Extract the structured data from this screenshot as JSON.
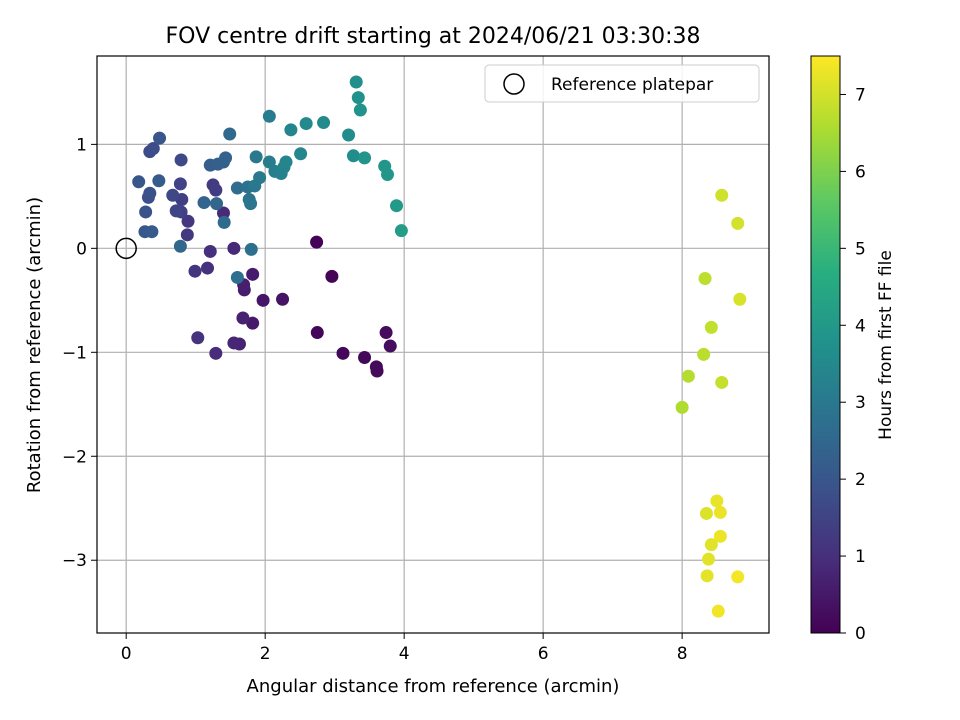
{
  "chart_data": {
    "type": "scatter",
    "title": "FOV centre drift starting at 2024/06/21 03:30:38",
    "xlabel": "Angular distance from reference (arcmin)",
    "ylabel": "Rotation from reference (arcmin)",
    "xlim": [
      -0.42,
      9.25
    ],
    "ylim": [
      -3.7,
      1.85
    ],
    "xticks": [
      0,
      2,
      4,
      6,
      8
    ],
    "yticks": [
      -3,
      -2,
      -1,
      0,
      1
    ],
    "xtick_labels": [
      "0",
      "2",
      "4",
      "6",
      "8"
    ],
    "ytick_labels": [
      "−3",
      "−2",
      "−1",
      "0",
      "1"
    ],
    "grid": true,
    "legend": {
      "position": "top-right",
      "label": "Reference platepar"
    },
    "reference_point": {
      "x": 0,
      "y": 0
    },
    "colorbar": {
      "label": "Hours from first FF file",
      "colormap": "viridis",
      "range": [
        0,
        7.5
      ],
      "ticks": [
        0,
        1,
        2,
        3,
        4,
        5,
        6,
        7
      ],
      "tick_labels": [
        "0",
        "1",
        "2",
        "3",
        "4",
        "5",
        "6",
        "7"
      ]
    },
    "points": [
      {
        "x": 2.74,
        "y": 0.06,
        "c": 0.05
      },
      {
        "x": 2.96,
        "y": -0.27,
        "c": 0.08
      },
      {
        "x": 2.75,
        "y": -0.81,
        "c": 0.1
      },
      {
        "x": 3.12,
        "y": -1.01,
        "c": 0.12
      },
      {
        "x": 3.43,
        "y": -1.05,
        "c": 0.15
      },
      {
        "x": 3.6,
        "y": -1.14,
        "c": 0.18
      },
      {
        "x": 3.61,
        "y": -1.18,
        "c": 0.2
      },
      {
        "x": 3.74,
        "y": -0.81,
        "c": 0.22
      },
      {
        "x": 3.8,
        "y": -0.94,
        "c": 0.25
      },
      {
        "x": 2.25,
        "y": -0.49,
        "c": 0.4
      },
      {
        "x": 1.97,
        "y": -0.5,
        "c": 0.45
      },
      {
        "x": 1.82,
        "y": -0.72,
        "c": 0.5
      },
      {
        "x": 1.82,
        "y": -0.25,
        "c": 0.55
      },
      {
        "x": 1.7,
        "y": -0.4,
        "c": 0.6
      },
      {
        "x": 1.69,
        "y": -0.35,
        "c": 0.65
      },
      {
        "x": 1.68,
        "y": -0.67,
        "c": 0.7
      },
      {
        "x": 1.63,
        "y": -0.92,
        "c": 0.75
      },
      {
        "x": 1.55,
        "y": -0.91,
        "c": 0.8
      },
      {
        "x": 1.55,
        "y": 0.0,
        "c": 0.85
      },
      {
        "x": 1.4,
        "y": 0.34,
        "c": 0.9
      },
      {
        "x": 1.29,
        "y": -1.01,
        "c": 0.95
      },
      {
        "x": 1.21,
        "y": -0.03,
        "c": 1.0
      },
      {
        "x": 1.17,
        "y": -0.19,
        "c": 1.05
      },
      {
        "x": 1.03,
        "y": -0.86,
        "c": 1.1
      },
      {
        "x": 0.99,
        "y": -0.22,
        "c": 1.15
      },
      {
        "x": 0.89,
        "y": 0.26,
        "c": 1.2
      },
      {
        "x": 0.88,
        "y": 0.13,
        "c": 1.25
      },
      {
        "x": 1.25,
        "y": 0.61,
        "c": 1.3
      },
      {
        "x": 1.29,
        "y": 0.56,
        "c": 1.35
      },
      {
        "x": 0.8,
        "y": 0.47,
        "c": 1.4
      },
      {
        "x": 0.79,
        "y": 0.35,
        "c": 1.45
      },
      {
        "x": 0.78,
        "y": 0.62,
        "c": 1.5
      },
      {
        "x": 0.72,
        "y": 0.36,
        "c": 1.55
      },
      {
        "x": 0.67,
        "y": 0.51,
        "c": 1.6
      },
      {
        "x": 0.79,
        "y": 0.85,
        "c": 1.65
      },
      {
        "x": 0.34,
        "y": 0.93,
        "c": 1.7
      },
      {
        "x": 0.39,
        "y": 0.96,
        "c": 1.75
      },
      {
        "x": 0.32,
        "y": 0.49,
        "c": 1.8
      },
      {
        "x": 0.34,
        "y": 0.53,
        "c": 1.85
      },
      {
        "x": 0.28,
        "y": 0.35,
        "c": 1.9
      },
      {
        "x": 0.48,
        "y": 1.06,
        "c": 1.95
      },
      {
        "x": 0.18,
        "y": 0.64,
        "c": 2.0
      },
      {
        "x": 0.27,
        "y": 0.16,
        "c": 2.05
      },
      {
        "x": 0.37,
        "y": 0.16,
        "c": 2.1
      },
      {
        "x": 0.47,
        "y": 0.65,
        "c": 2.15
      },
      {
        "x": 1.21,
        "y": 0.8,
        "c": 2.2
      },
      {
        "x": 1.32,
        "y": 0.81,
        "c": 2.25
      },
      {
        "x": 1.4,
        "y": 0.83,
        "c": 2.3
      },
      {
        "x": 1.43,
        "y": 0.87,
        "c": 2.35
      },
      {
        "x": 1.12,
        "y": 0.44,
        "c": 2.4
      },
      {
        "x": 1.3,
        "y": 0.43,
        "c": 2.45
      },
      {
        "x": 0.78,
        "y": 0.02,
        "c": 2.5
      },
      {
        "x": 1.49,
        "y": 1.1,
        "c": 2.55
      },
      {
        "x": 1.41,
        "y": 0.25,
        "c": 2.6
      },
      {
        "x": 1.6,
        "y": 0.58,
        "c": 2.65
      },
      {
        "x": 1.6,
        "y": -0.28,
        "c": 2.7
      },
      {
        "x": 1.8,
        "y": -0.01,
        "c": 2.75
      },
      {
        "x": 1.75,
        "y": 0.59,
        "c": 2.8
      },
      {
        "x": 1.77,
        "y": 0.47,
        "c": 2.85
      },
      {
        "x": 1.79,
        "y": 0.43,
        "c": 2.9
      },
      {
        "x": 1.85,
        "y": 0.6,
        "c": 2.95
      },
      {
        "x": 1.87,
        "y": 0.88,
        "c": 3.0
      },
      {
        "x": 1.92,
        "y": 0.68,
        "c": 3.05
      },
      {
        "x": 2.06,
        "y": 1.27,
        "c": 3.1
      },
      {
        "x": 2.06,
        "y": 0.83,
        "c": 3.15
      },
      {
        "x": 2.14,
        "y": 0.74,
        "c": 3.2
      },
      {
        "x": 2.23,
        "y": 0.72,
        "c": 3.25
      },
      {
        "x": 2.27,
        "y": 0.78,
        "c": 3.3
      },
      {
        "x": 2.3,
        "y": 0.83,
        "c": 3.35
      },
      {
        "x": 2.37,
        "y": 1.14,
        "c": 3.4
      },
      {
        "x": 2.51,
        "y": 0.91,
        "c": 3.45
      },
      {
        "x": 2.59,
        "y": 1.2,
        "c": 3.5
      },
      {
        "x": 2.84,
        "y": 1.21,
        "c": 3.55
      },
      {
        "x": 3.2,
        "y": 1.09,
        "c": 3.6
      },
      {
        "x": 3.27,
        "y": 0.89,
        "c": 3.65
      },
      {
        "x": 3.31,
        "y": 1.6,
        "c": 3.7
      },
      {
        "x": 3.34,
        "y": 1.45,
        "c": 3.75
      },
      {
        "x": 3.37,
        "y": 1.33,
        "c": 3.8
      },
      {
        "x": 3.43,
        "y": 0.87,
        "c": 3.85
      },
      {
        "x": 3.72,
        "y": 0.79,
        "c": 3.9
      },
      {
        "x": 3.76,
        "y": 0.71,
        "c": 3.95
      },
      {
        "x": 3.89,
        "y": 0.41,
        "c": 4.0
      },
      {
        "x": 3.96,
        "y": 0.17,
        "c": 4.1
      },
      {
        "x": 8.0,
        "y": -1.53,
        "c": 6.6
      },
      {
        "x": 8.09,
        "y": -1.23,
        "c": 6.65
      },
      {
        "x": 8.31,
        "y": -1.02,
        "c": 6.7
      },
      {
        "x": 8.33,
        "y": -0.29,
        "c": 6.75
      },
      {
        "x": 8.42,
        "y": -0.76,
        "c": 6.8
      },
      {
        "x": 8.57,
        "y": -1.29,
        "c": 6.85
      },
      {
        "x": 8.57,
        "y": 0.51,
        "c": 6.95
      },
      {
        "x": 8.8,
        "y": 0.24,
        "c": 7.0
      },
      {
        "x": 8.83,
        "y": -0.49,
        "c": 7.05
      },
      {
        "x": 8.35,
        "y": -2.55,
        "c": 7.1
      },
      {
        "x": 8.42,
        "y": -2.85,
        "c": 7.15
      },
      {
        "x": 8.38,
        "y": -2.99,
        "c": 7.18
      },
      {
        "x": 8.36,
        "y": -3.15,
        "c": 7.2
      },
      {
        "x": 8.5,
        "y": -2.43,
        "c": 7.25
      },
      {
        "x": 8.55,
        "y": -2.54,
        "c": 7.28
      },
      {
        "x": 8.55,
        "y": -2.77,
        "c": 7.3
      },
      {
        "x": 8.52,
        "y": -3.49,
        "c": 7.35
      },
      {
        "x": 8.8,
        "y": -3.16,
        "c": 7.4
      }
    ]
  }
}
